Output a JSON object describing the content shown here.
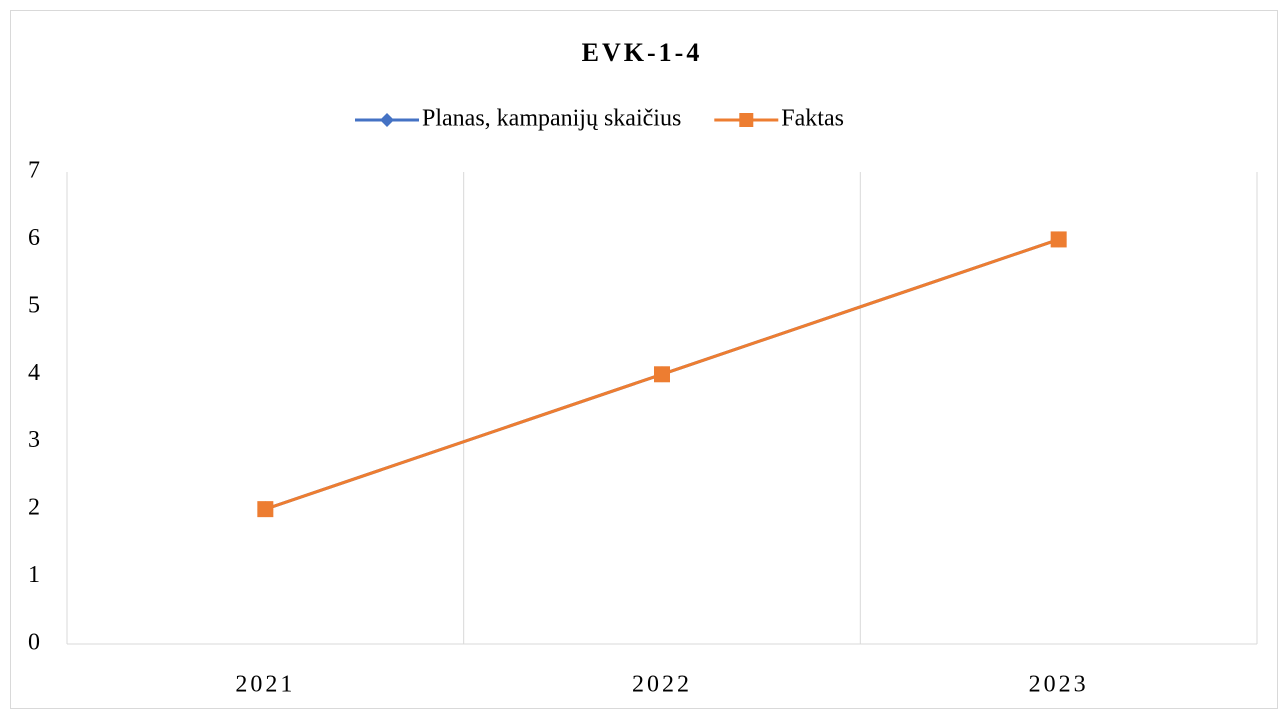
{
  "chart_data": {
    "type": "line",
    "title": "EVK-1-4",
    "categories": [
      "2021",
      "2022",
      "2023"
    ],
    "series": [
      {
        "name": "Planas, kampanijų skaičius",
        "color": "#4472c4",
        "marker": "diamond",
        "values": [
          2,
          4,
          6
        ]
      },
      {
        "name": "Faktas",
        "color": "#ed7d31",
        "marker": "square",
        "values": [
          2,
          4,
          6
        ]
      }
    ],
    "ylim": [
      0,
      7
    ],
    "yticks": [
      0,
      1,
      2,
      3,
      4,
      5,
      6,
      7
    ],
    "grid": "x",
    "legend": "top"
  }
}
